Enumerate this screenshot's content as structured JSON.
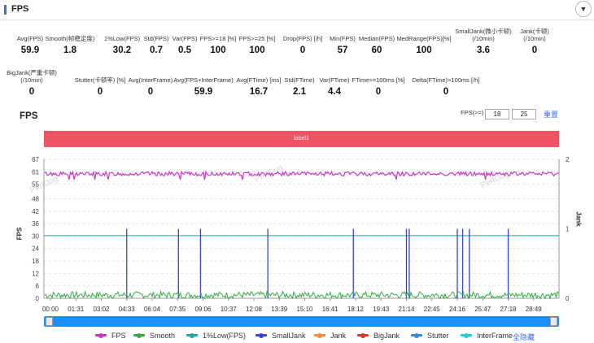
{
  "header": {
    "title": "FPS"
  },
  "metrics_row1": [
    {
      "label": "Avg(FPS)",
      "value": "59.9"
    },
    {
      "label": "Smooth(帧稳定度)",
      "value": "1.8"
    },
    {
      "label": "1%Low(FPS)",
      "value": "30.2"
    },
    {
      "label": "Std(FPS)",
      "value": "0.7"
    },
    {
      "label": "Var(FPS)",
      "value": "0.5"
    },
    {
      "label": "FPS>=18 [%]",
      "value": "100"
    },
    {
      "label": "FPS>=25 [%]",
      "value": "100"
    },
    {
      "label": "Drop(FPS) [/h]",
      "value": "0"
    },
    {
      "label": "Min(FPS)",
      "value": "57"
    },
    {
      "label": "Median(FPS)",
      "value": "60"
    },
    {
      "label": "MedRange(FPS)[%]",
      "value": "100"
    },
    {
      "label": "SmallJank(微小卡顿)",
      "label2": "(/10min)",
      "value": "3.6"
    },
    {
      "label": "Jank(卡顿)",
      "label2": "(/10min)",
      "value": "0"
    }
  ],
  "metrics_row2": [
    {
      "label": "BigJank(严重卡顿)",
      "label2": "(/10min)",
      "value": "0"
    },
    {
      "label": "Stutter(卡顿率) [%]",
      "value": "0"
    },
    {
      "label": "Avg(InterFrame)",
      "value": "0"
    },
    {
      "label": "Avg(FPS+InterFrame)",
      "value": "59.9"
    },
    {
      "label": "Avg(FTime) [ms]",
      "value": "16.7"
    },
    {
      "label": "Std(FTime)",
      "value": "2.1"
    },
    {
      "label": "Var(FTime)",
      "value": "4.4"
    },
    {
      "label": "FTime>=100ms [%]",
      "value": "0"
    },
    {
      "label": "Delta(FTime)>100ms [/h]",
      "value": "0"
    }
  ],
  "chart_section": {
    "title": "FPS",
    "threshold_label": "FPS(>=)",
    "threshold_1": "18",
    "threshold_2": "25",
    "reset_label": "重置",
    "band_label": "label1",
    "watermark": "PerfDog"
  },
  "legend": {
    "items": [
      {
        "name": "FPS",
        "color": "#cc33cc"
      },
      {
        "name": "Smooth",
        "color": "#33aa44"
      },
      {
        "name": "1%Low(FPS)",
        "color": "#22a8a0"
      },
      {
        "name": "SmallJank",
        "color": "#3344dd"
      },
      {
        "name": "Jank",
        "color": "#ff8833"
      },
      {
        "name": "BigJank",
        "color": "#dd3322"
      },
      {
        "name": "Stutter",
        "color": "#3388ee"
      },
      {
        "name": "InterFrame",
        "color": "#22ccdd"
      }
    ],
    "hide_all_label": "全隐藏"
  },
  "chart_data": {
    "type": "line",
    "ylabel": "FPS",
    "y2label": "Jank",
    "ylim": [
      0,
      67
    ],
    "yticks": [
      0,
      6,
      12,
      18,
      24,
      30,
      36,
      42,
      48,
      55,
      61,
      67
    ],
    "y2lim": [
      0,
      2
    ],
    "y2ticks": [
      0,
      1,
      2
    ],
    "xticks": [
      "00:00",
      "01:31",
      "03:02",
      "04:33",
      "06:04",
      "07:35",
      "09:06",
      "10:37",
      "12:08",
      "13:39",
      "15:10",
      "16:41",
      "18:12",
      "19:43",
      "21:14",
      "22:45",
      "24:16",
      "25:47",
      "27:18",
      "28:49"
    ],
    "series": [
      {
        "name": "FPS",
        "approx_value": 60,
        "range": [
          57,
          61
        ]
      },
      {
        "name": "Smooth",
        "approx_value": 1.8,
        "range": [
          0,
          3
        ]
      },
      {
        "name": "1%Low(FPS)",
        "value": 30.2
      },
      {
        "name": "SmallJank",
        "events": [
          "04:33",
          "07:38",
          "08:57",
          "12:58",
          "18:04",
          "21:14",
          "21:24",
          "24:16",
          "24:35",
          "24:59",
          "27:18"
        ],
        "value": 1
      }
    ],
    "grid": true,
    "legend_position": "bottom"
  }
}
